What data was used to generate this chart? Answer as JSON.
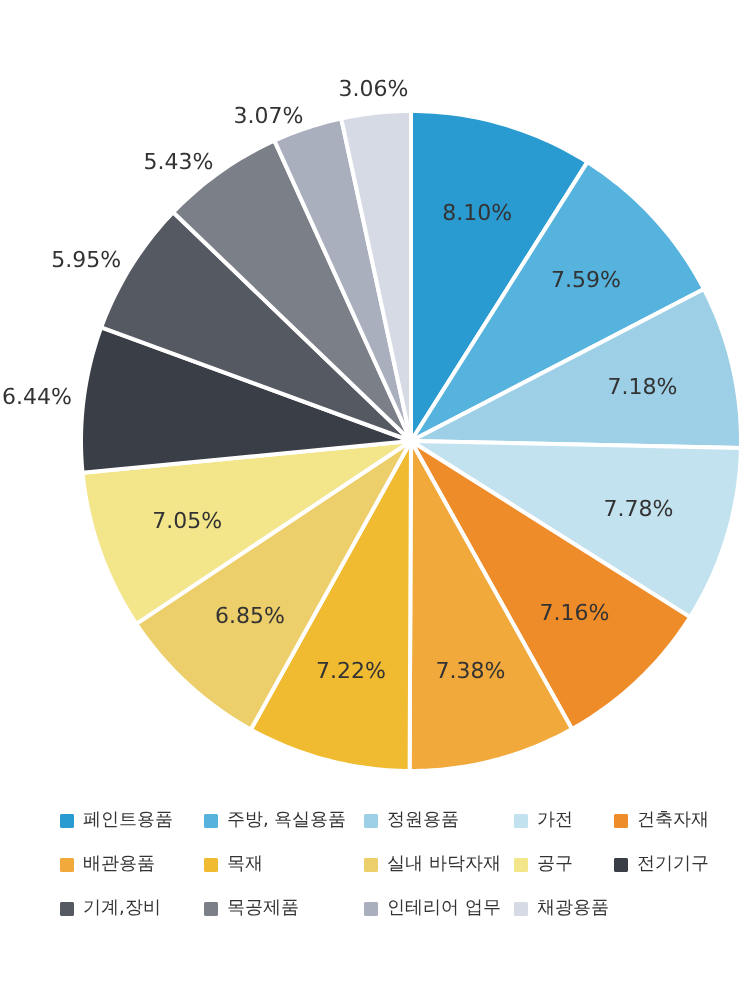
{
  "chart_data": {
    "type": "pie",
    "categories": [
      "페인트용품",
      "주방, 욕실용품",
      "정원용품",
      "가전",
      "건축자재",
      "배관용품",
      "목재",
      "실내 바닥자재",
      "공구",
      "전기기구",
      "기계,장비",
      "목공제품",
      "인테리어 업무",
      "채광용품"
    ],
    "values": [
      8.1,
      7.59,
      7.18,
      7.78,
      7.16,
      7.38,
      7.22,
      6.85,
      7.05,
      6.44,
      5.95,
      5.43,
      3.07,
      3.06
    ],
    "value_labels": [
      "8.10%",
      "7.59%",
      "7.18%",
      "7.78%",
      "7.16%",
      "7.38%",
      "7.22%",
      "6.85%",
      "7.05%",
      "6.44%",
      "5.95%",
      "5.43%",
      "3.07%",
      "3.06%"
    ],
    "colors": [
      "#2a9bd0",
      "#55b3de",
      "#9dd0e6",
      "#c3e2f0",
      "#ef8c2a",
      "#f2a93b",
      "#f0bb30",
      "#ecce6a",
      "#f3e58a",
      "#3a3f47",
      "#555a62",
      "#7b7f88",
      "#a9afbd",
      "#d5dae4"
    ],
    "legend": "bottom"
  }
}
